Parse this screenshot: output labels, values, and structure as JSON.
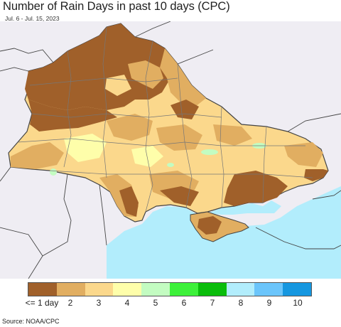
{
  "title": "Number of Rain Days in past 10 days (CPC)",
  "subtitle": "Jul. 6 - Jul. 15, 2023",
  "source": "Source: NOAA/CPC",
  "legend": {
    "items": [
      {
        "label": "<= 1 day",
        "color": "#a0602a"
      },
      {
        "label": "2",
        "color": "#e1ae61"
      },
      {
        "label": "3",
        "color": "#fbd88c"
      },
      {
        "label": "4",
        "color": "#fefeaa"
      },
      {
        "label": "5",
        "color": "#c3fcc1"
      },
      {
        "label": "6",
        "color": "#3df13a"
      },
      {
        "label": "7",
        "color": "#0abd0b"
      },
      {
        "label": "8",
        "color": "#b2edfc"
      },
      {
        "label": "9",
        "color": "#6bc5fb"
      },
      {
        "label": "10",
        "color": "#1597e0"
      }
    ]
  },
  "map": {
    "colors": {
      "sea": "#b2edfc",
      "outside": "#efedf3",
      "border": "#444444",
      "oblast_border": "#777777"
    }
  }
}
